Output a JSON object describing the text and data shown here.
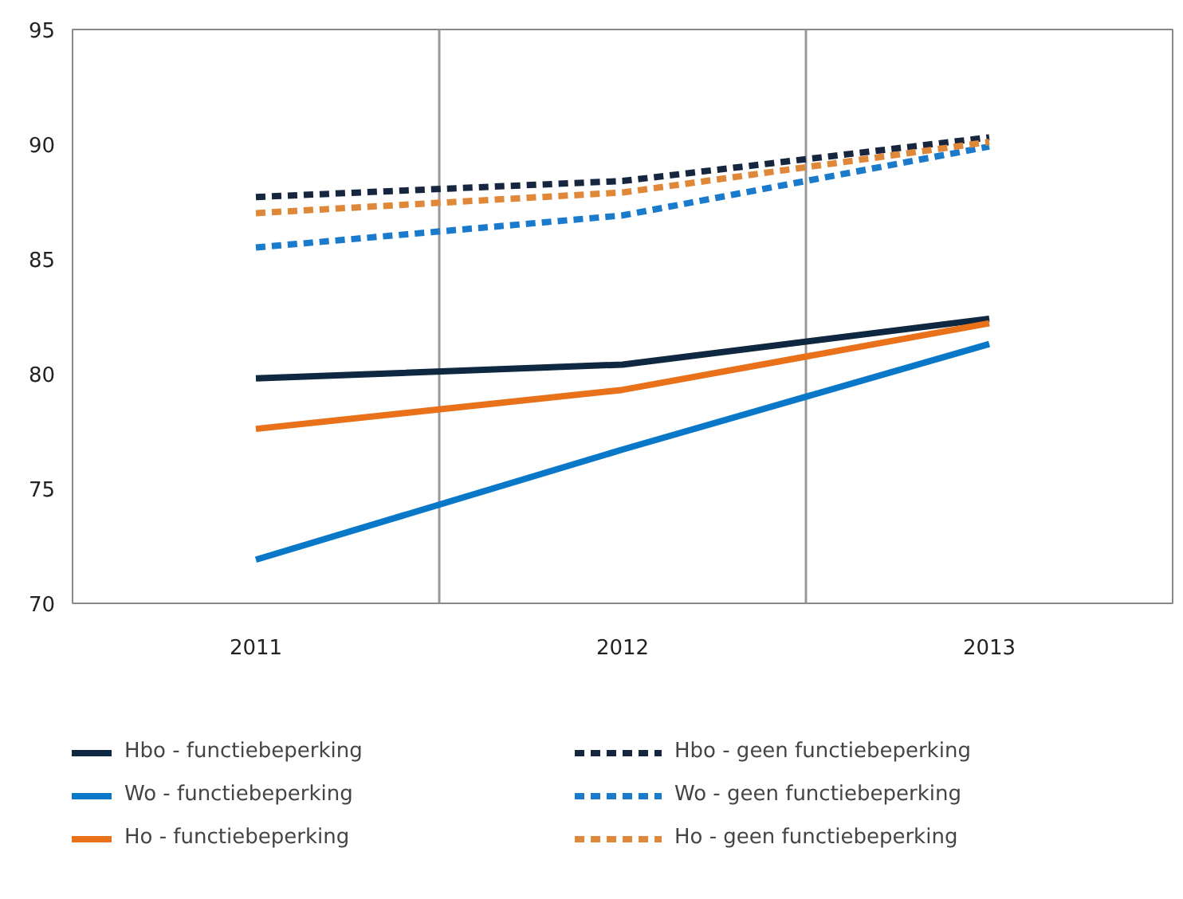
{
  "chart_data": {
    "type": "line",
    "categories": [
      "2011",
      "2012",
      "2013"
    ],
    "ylim": [
      70,
      95
    ],
    "yticks": [
      70,
      75,
      80,
      85,
      90,
      95
    ],
    "grid": "x",
    "legend": "bottom",
    "marker": "none",
    "series": [
      {
        "name": "Hbo - functiebeperking",
        "color": "#0f2841",
        "line_style": "solid",
        "values": [
          79.8,
          80.4,
          82.4
        ]
      },
      {
        "name": "Hbo - geen functiebeperking",
        "color": "#17263f",
        "line_style": "dashed",
        "values": [
          87.7,
          88.4,
          90.3
        ]
      },
      {
        "name": "Wo - functiebeperking",
        "color": "#0a78c8",
        "line_style": "solid",
        "values": [
          71.9,
          76.7,
          81.3
        ]
      },
      {
        "name": "Wo - geen functiebeperking",
        "color": "#1a7acc",
        "line_style": "dashed",
        "values": [
          85.5,
          86.9,
          89.9
        ]
      },
      {
        "name": "Ho - functiebeperking",
        "color": "#e8711a",
        "line_style": "solid",
        "values": [
          77.6,
          79.3,
          82.2
        ]
      },
      {
        "name": "Ho - geen functiebeperking",
        "color": "#e0883a",
        "line_style": "dashed",
        "values": [
          87.0,
          87.9,
          90.1
        ]
      }
    ]
  }
}
